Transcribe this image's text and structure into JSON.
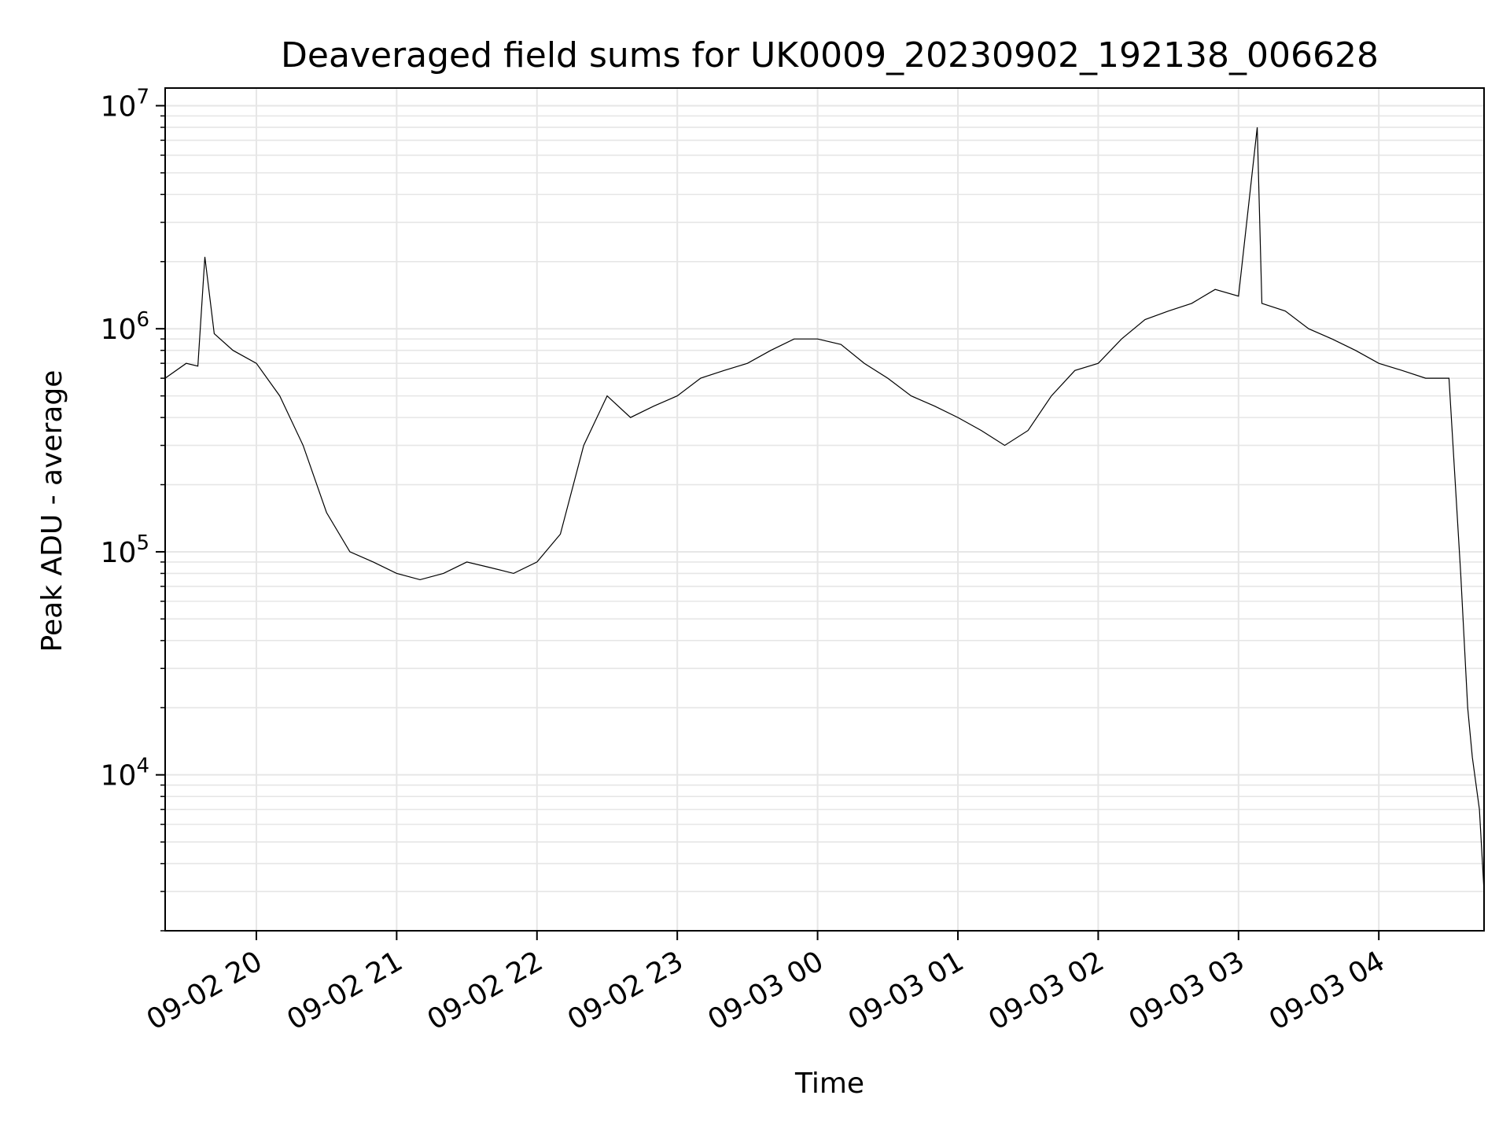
{
  "chart_data": {
    "type": "line",
    "title": "Deaveraged field sums for UK0009_20230902_192138_006628",
    "xlabel": "Time",
    "ylabel": "Peak ADU - average",
    "y_scale": "log",
    "ylim": [
      2000,
      12000000
    ],
    "xlim": [
      "2023-09-02 19:21",
      "2023-09-03 04:45"
    ],
    "grid": true,
    "line_color": "#000000",
    "grid_color": "#e6e6e6",
    "x_ticks": [
      {
        "value": "2023-09-02 20:00",
        "label": "09-02 20"
      },
      {
        "value": "2023-09-02 21:00",
        "label": "09-02 21"
      },
      {
        "value": "2023-09-02 22:00",
        "label": "09-02 22"
      },
      {
        "value": "2023-09-02 23:00",
        "label": "09-02 23"
      },
      {
        "value": "2023-09-03 00:00",
        "label": "09-03 00"
      },
      {
        "value": "2023-09-03 01:00",
        "label": "09-03 01"
      },
      {
        "value": "2023-09-03 02:00",
        "label": "09-03 02"
      },
      {
        "value": "2023-09-03 03:00",
        "label": "09-03 03"
      },
      {
        "value": "2023-09-03 04:00",
        "label": "09-03 04"
      }
    ],
    "y_ticks": [
      {
        "value": 10000,
        "base": "10",
        "exp": "4"
      },
      {
        "value": 100000,
        "base": "10",
        "exp": "5"
      },
      {
        "value": 1000000,
        "base": "10",
        "exp": "6"
      },
      {
        "value": 10000000,
        "base": "10",
        "exp": "7"
      }
    ],
    "series": [
      {
        "x": [
          "2023-09-02 19:21",
          "2023-09-02 19:30",
          "2023-09-02 19:35",
          "2023-09-02 19:38",
          "2023-09-02 19:42",
          "2023-09-02 19:50",
          "2023-09-02 20:00",
          "2023-09-02 20:10",
          "2023-09-02 20:20",
          "2023-09-02 20:30",
          "2023-09-02 20:40",
          "2023-09-02 20:50",
          "2023-09-02 21:00",
          "2023-09-02 21:10",
          "2023-09-02 21:20",
          "2023-09-02 21:30",
          "2023-09-02 21:40",
          "2023-09-02 21:50",
          "2023-09-02 22:00",
          "2023-09-02 22:10",
          "2023-09-02 22:20",
          "2023-09-02 22:30",
          "2023-09-02 22:40",
          "2023-09-02 22:50",
          "2023-09-02 23:00",
          "2023-09-02 23:10",
          "2023-09-02 23:20",
          "2023-09-02 23:30",
          "2023-09-02 23:40",
          "2023-09-02 23:50",
          "2023-09-03 00:00",
          "2023-09-03 00:10",
          "2023-09-03 00:20",
          "2023-09-03 00:30",
          "2023-09-03 00:40",
          "2023-09-03 00:50",
          "2023-09-03 01:00",
          "2023-09-03 01:10",
          "2023-09-03 01:20",
          "2023-09-03 01:30",
          "2023-09-03 01:40",
          "2023-09-03 01:50",
          "2023-09-03 02:00",
          "2023-09-03 02:10",
          "2023-09-03 02:20",
          "2023-09-03 02:30",
          "2023-09-03 02:40",
          "2023-09-03 02:50",
          "2023-09-03 03:00",
          "2023-09-03 03:08",
          "2023-09-03 03:10",
          "2023-09-03 03:20",
          "2023-09-03 03:30",
          "2023-09-03 03:40",
          "2023-09-03 03:50",
          "2023-09-03 04:00",
          "2023-09-03 04:10",
          "2023-09-03 04:20",
          "2023-09-03 04:30",
          "2023-09-03 04:35",
          "2023-09-03 04:38",
          "2023-09-03 04:40",
          "2023-09-03 04:43",
          "2023-09-03 04:45"
        ],
        "y": [
          600000,
          700000,
          680000,
          2100000,
          950000,
          800000,
          700000,
          500000,
          300000,
          150000,
          100000,
          90000,
          80000,
          75000,
          80000,
          90000,
          85000,
          80000,
          90000,
          120000,
          300000,
          500000,
          400000,
          450000,
          500000,
          600000,
          650000,
          700000,
          800000,
          900000,
          900000,
          850000,
          700000,
          600000,
          500000,
          450000,
          400000,
          350000,
          300000,
          350000,
          500000,
          650000,
          700000,
          900000,
          1100000,
          1200000,
          1300000,
          1500000,
          1400000,
          8000000,
          1300000,
          1200000,
          1000000,
          900000,
          800000,
          700000,
          650000,
          600000,
          600000,
          80000,
          20000,
          12000,
          7000,
          3000
        ]
      }
    ]
  }
}
